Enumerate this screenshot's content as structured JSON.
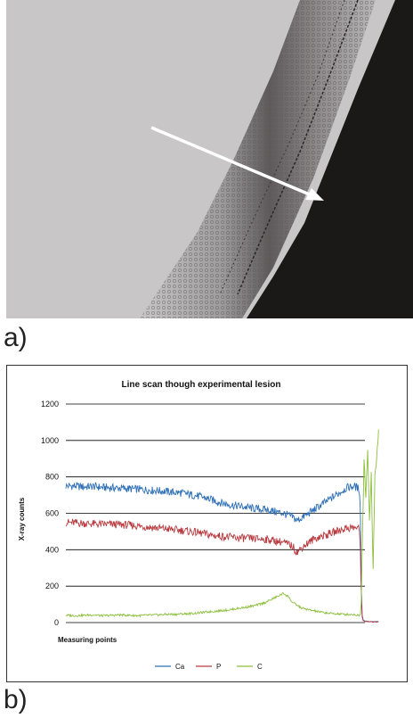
{
  "panels": {
    "a": "a)",
    "b": "b)"
  },
  "image": {
    "arrow_color": "#ffffff",
    "background_color": "#c8c6c7",
    "dark_region_color": "#1b1818"
  },
  "chart_data": {
    "type": "line",
    "title": "Line scan though experimental lesion",
    "xlabel": "Measuring points",
    "ylabel": "X-ray counts",
    "ylim": [
      0,
      1200
    ],
    "yticks": [
      "0",
      "200",
      "400",
      "600",
      "800",
      "1000",
      "1200"
    ],
    "grid": true,
    "legend_position": "bottom",
    "x_points": 330,
    "series": [
      {
        "name": "Ca",
        "color": "#2e6fb5",
        "values": [
          750,
          750,
          745,
          748,
          742,
          740,
          738,
          735,
          732,
          728,
          725,
          720,
          715,
          710,
          700,
          690,
          675,
          660,
          648,
          640,
          632,
          625,
          620,
          610,
          600,
          580,
          560,
          580,
          600,
          620,
          640,
          660,
          680,
          700,
          720,
          740,
          745,
          750,
          742,
          735,
          720,
          600,
          200,
          40,
          15,
          8,
          5,
          5,
          5
        ],
        "x_positions": [
          0,
          10,
          20,
          30,
          40,
          50,
          60,
          70,
          80,
          90,
          100,
          110,
          120,
          130,
          140,
          150,
          160,
          170,
          180,
          190,
          200,
          210,
          220,
          230,
          240,
          250,
          255,
          262,
          268,
          274,
          280,
          286,
          292,
          298,
          304,
          310,
          314,
          318,
          321,
          323,
          324,
          325,
          326,
          327,
          328,
          330,
          335,
          340,
          345
        ]
      },
      {
        "name": "P",
        "color": "#b83a3f",
        "values": [
          550,
          548,
          545,
          542,
          540,
          540,
          538,
          535,
          530,
          525,
          520,
          515,
          510,
          505,
          498,
          490,
          480,
          475,
          470,
          465,
          462,
          460,
          458,
          450,
          440,
          420,
          385,
          420,
          440,
          460,
          470,
          480,
          490,
          500,
          510,
          520,
          520,
          522,
          520,
          515,
          500,
          400,
          150,
          30,
          12,
          6,
          4,
          4,
          4
        ],
        "x_positions": [
          0,
          10,
          20,
          30,
          40,
          50,
          60,
          70,
          80,
          90,
          100,
          110,
          120,
          130,
          140,
          150,
          160,
          170,
          180,
          190,
          200,
          210,
          220,
          230,
          240,
          250,
          255,
          262,
          268,
          274,
          280,
          286,
          292,
          298,
          304,
          310,
          314,
          318,
          321,
          323,
          324,
          325,
          326,
          327,
          328,
          330,
          335,
          340,
          345
        ]
      },
      {
        "name": "C",
        "color": "#8cbf3f",
        "values": [
          40,
          38,
          40,
          42,
          38,
          40,
          42,
          40,
          38,
          40,
          42,
          45,
          45,
          48,
          50,
          55,
          60,
          65,
          70,
          78,
          85,
          95,
          110,
          135,
          160,
          145,
          110,
          95,
          80,
          70,
          62,
          55,
          50,
          48,
          45,
          45,
          42,
          40,
          40,
          45,
          120,
          400,
          900,
          700,
          950,
          550,
          820,
          270,
          800,
          900,
          1060
        ],
        "x_positions": [
          0,
          10,
          20,
          30,
          40,
          50,
          60,
          70,
          80,
          90,
          100,
          110,
          120,
          130,
          140,
          150,
          160,
          170,
          180,
          190,
          200,
          210,
          220,
          230,
          240,
          245,
          250,
          255,
          260,
          268,
          276,
          284,
          292,
          300,
          308,
          316,
          320,
          322,
          324,
          325,
          326,
          327,
          329,
          331,
          333,
          335,
          337,
          339,
          341,
          343,
          345
        ]
      }
    ]
  }
}
